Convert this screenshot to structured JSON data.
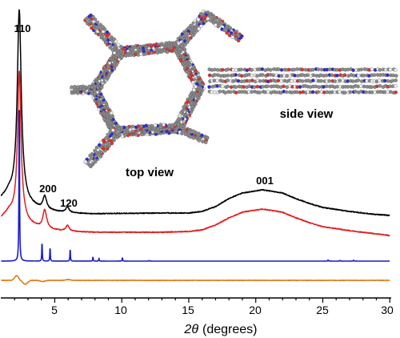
{
  "chart_data": {
    "type": "line",
    "x_axis": {
      "label_symbol": "2θ",
      "label_unit": "(degrees)",
      "range": [
        1,
        30
      ],
      "ticks": [
        "5",
        "10",
        "15",
        "20",
        "25",
        "30"
      ]
    },
    "y_axis": {
      "ticks_shown": false
    },
    "grid": false,
    "legend": "none",
    "series": [
      {
        "color": "#000000",
        "baseline": 266,
        "background": [
          [
            1.0,
            248
          ],
          [
            1.6,
            240
          ],
          [
            2.0,
            242
          ],
          [
            2.6,
            246
          ],
          [
            3.0,
            254
          ],
          [
            4,
            262
          ],
          [
            6,
            266
          ],
          [
            8,
            267
          ],
          [
            10,
            266.5
          ],
          [
            13,
            266
          ],
          [
            15,
            266
          ],
          [
            16,
            264
          ],
          [
            17,
            258
          ],
          [
            18,
            248
          ],
          [
            19,
            241
          ],
          [
            20.5,
            237
          ],
          [
            22,
            241
          ],
          [
            23,
            248
          ],
          [
            24,
            254
          ],
          [
            25,
            259
          ],
          [
            27,
            264
          ],
          [
            28.5,
            267
          ],
          [
            30,
            269
          ]
        ],
        "peaks": [
          {
            "x": 2.35,
            "h": 0.98,
            "w": 0.35
          },
          {
            "x": 4.25,
            "h": 0.07,
            "w": 0.35
          },
          {
            "x": 5.95,
            "h": 0.03,
            "w": 0.3
          }
        ]
      },
      {
        "color": "#e02020",
        "baseline": 290,
        "background": [
          [
            1.0,
            272
          ],
          [
            1.6,
            264
          ],
          [
            2.0,
            266
          ],
          [
            2.6,
            270
          ],
          [
            3.0,
            278
          ],
          [
            4,
            286
          ],
          [
            6,
            289
          ],
          [
            8,
            290
          ],
          [
            10,
            290
          ],
          [
            13,
            290
          ],
          [
            15,
            289
          ],
          [
            16,
            287
          ],
          [
            17,
            281
          ],
          [
            18,
            272
          ],
          [
            19,
            265
          ],
          [
            20.5,
            261
          ],
          [
            22,
            265
          ],
          [
            23,
            272
          ],
          [
            24,
            278
          ],
          [
            25,
            283
          ],
          [
            27,
            288
          ],
          [
            28.5,
            291
          ],
          [
            30,
            294
          ]
        ],
        "peaks": [
          {
            "x": 2.35,
            "h": 0.76,
            "w": 0.3
          },
          {
            "x": 4.25,
            "h": 0.1,
            "w": 0.35
          },
          {
            "x": 5.95,
            "h": 0.03,
            "w": 0.3
          }
        ]
      },
      {
        "color": "#1a1acc",
        "baseline": 326,
        "background": [
          [
            1.0,
            326
          ],
          [
            30,
            326
          ]
        ],
        "peaks": [
          {
            "x": 2.35,
            "h": 0.95,
            "w": 0.045
          },
          {
            "x": 4.05,
            "h": 0.11,
            "w": 0.04
          },
          {
            "x": 4.65,
            "h": 0.08,
            "w": 0.04
          },
          {
            "x": 6.15,
            "h": 0.07,
            "w": 0.04
          },
          {
            "x": 7.85,
            "h": 0.025,
            "w": 0.04
          },
          {
            "x": 8.3,
            "h": 0.015,
            "w": 0.04
          },
          {
            "x": 10.05,
            "h": 0.02,
            "w": 0.04
          },
          {
            "x": 12.05,
            "h": 0.004,
            "w": 0.04
          },
          {
            "x": 25.4,
            "h": 0.006,
            "w": 0.05
          },
          {
            "x": 26.3,
            "h": 0.004,
            "w": 0.05
          },
          {
            "x": 27.3,
            "h": 0.005,
            "w": 0.05
          }
        ]
      },
      {
        "color": "#e07a10",
        "baseline": 350,
        "background": [
          [
            1.0,
            350
          ],
          [
            30,
            350
          ]
        ],
        "difference": [
          {
            "x": 2.15,
            "amp": -0.025,
            "w": 0.2
          },
          {
            "x": 2.8,
            "amp": 0.02,
            "w": 0.25
          },
          {
            "x": 4.1,
            "amp": 0.006,
            "w": 0.25
          },
          {
            "x": 6.0,
            "amp": -0.004,
            "w": 0.25
          }
        ]
      }
    ],
    "annotations": [
      "110",
      "200",
      "120",
      "001"
    ],
    "inset_labels": [
      "top view",
      "side view"
    ]
  },
  "colors": {
    "carbon": "#8c8c8c",
    "oxygen": "#e03030",
    "nitrogen": "#2b2bd6",
    "hydrogen": "#f2f2f2"
  }
}
